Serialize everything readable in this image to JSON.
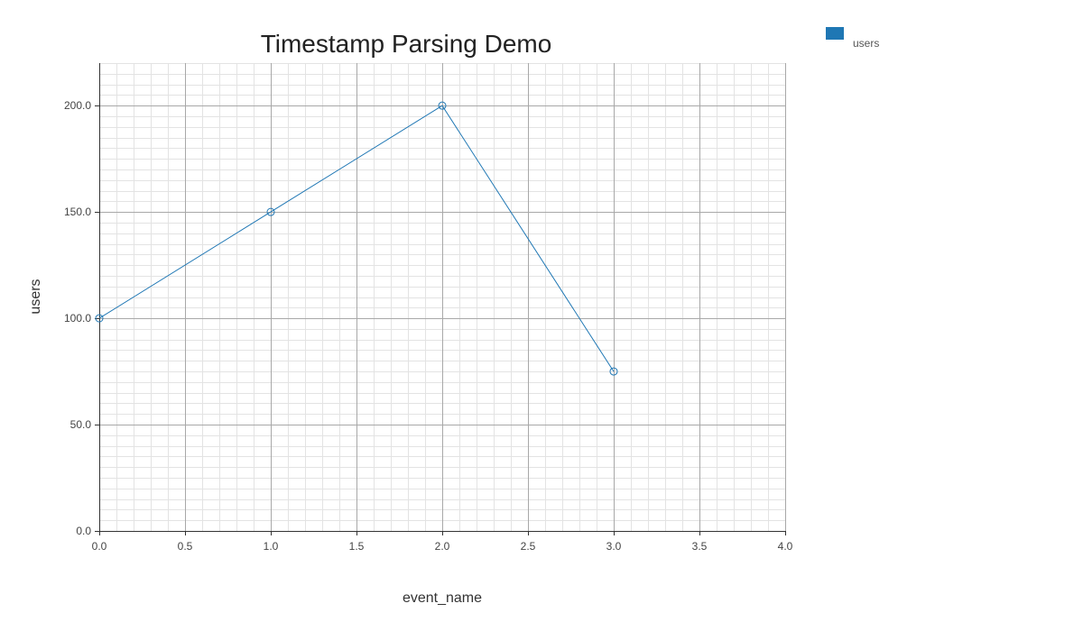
{
  "chart_data": {
    "type": "line",
    "title": "Timestamp Parsing Demo",
    "xlabel": "event_name",
    "ylabel": "users",
    "xlim": [
      0,
      4
    ],
    "ylim": [
      0,
      220
    ],
    "x_ticks": [
      "0.0",
      "0.5",
      "1.0",
      "1.5",
      "2.0",
      "2.5",
      "3.0",
      "3.5",
      "4.0"
    ],
    "y_ticks": [
      "0.0",
      "50.0",
      "100.0",
      "150.0",
      "200.0"
    ],
    "grid": true,
    "legend_position": "top-right",
    "series": [
      {
        "name": "users",
        "color": "#1f77b4",
        "marker": "circle",
        "x": [
          0,
          1,
          2,
          3
        ],
        "y": [
          100,
          150,
          200,
          75
        ]
      }
    ]
  }
}
